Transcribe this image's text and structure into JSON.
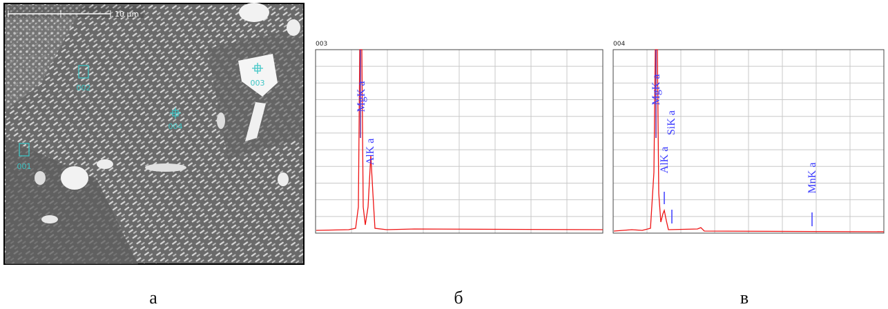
{
  "image": {
    "scale_bar": "10 µm",
    "points": [
      "001",
      "002",
      "003",
      "004"
    ]
  },
  "spectra": [
    {
      "title": "003",
      "peaks": [
        "MgK a",
        "AlK a"
      ]
    },
    {
      "title": "004",
      "peaks": [
        "MgK a",
        "AlK a",
        "SiK a",
        "MnK a"
      ]
    }
  ],
  "captions": [
    "а",
    "б",
    "в"
  ]
}
